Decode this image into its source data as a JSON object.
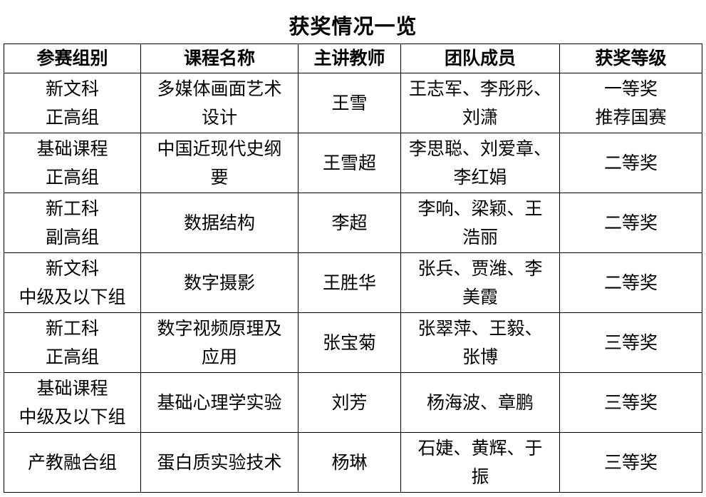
{
  "title": "获奖情况一览",
  "headers": [
    "参赛组别",
    "课程名称",
    "主讲教师",
    "团队成员",
    "获奖等级"
  ],
  "rows": [
    [
      [
        "新文科",
        "正高组"
      ],
      [
        "多媒体画面艺术",
        "设计"
      ],
      [
        "王雪"
      ],
      [
        "王志军、李彤彤、",
        "刘潇"
      ],
      [
        "一等奖",
        "推荐国赛"
      ]
    ],
    [
      [
        "基础课程",
        "正高组"
      ],
      [
        "中国近现代史纲",
        "要"
      ],
      [
        "王雪超"
      ],
      [
        "李思聪、刘爱章、",
        "李红娟"
      ],
      [
        "二等奖"
      ]
    ],
    [
      [
        "新工科",
        "副高组"
      ],
      [
        "数据结构"
      ],
      [
        "李超"
      ],
      [
        "李响、梁颖、王",
        "浩丽"
      ],
      [
        "二等奖"
      ]
    ],
    [
      [
        "新文科",
        "中级及以下组"
      ],
      [
        "数字摄影"
      ],
      [
        "王胜华"
      ],
      [
        "张兵、贾潍、李",
        "美霞"
      ],
      [
        "二等奖"
      ]
    ],
    [
      [
        "新工科",
        "正高组"
      ],
      [
        "数字视频原理及",
        "应用"
      ],
      [
        "张宝菊"
      ],
      [
        "张翠萍、王毅、",
        "张博"
      ],
      [
        "三等奖"
      ]
    ],
    [
      [
        "基础课程",
        "中级及以下组"
      ],
      [
        "基础心理学实验"
      ],
      [
        "刘芳"
      ],
      [
        "杨海波、章鹏"
      ],
      [
        "三等奖"
      ]
    ],
    [
      [
        "产教融合组"
      ],
      [
        "蛋白质实验技术"
      ],
      [
        "杨琳"
      ],
      [
        "石婕、黄辉、于",
        "振"
      ],
      [
        "三等奖"
      ]
    ]
  ]
}
